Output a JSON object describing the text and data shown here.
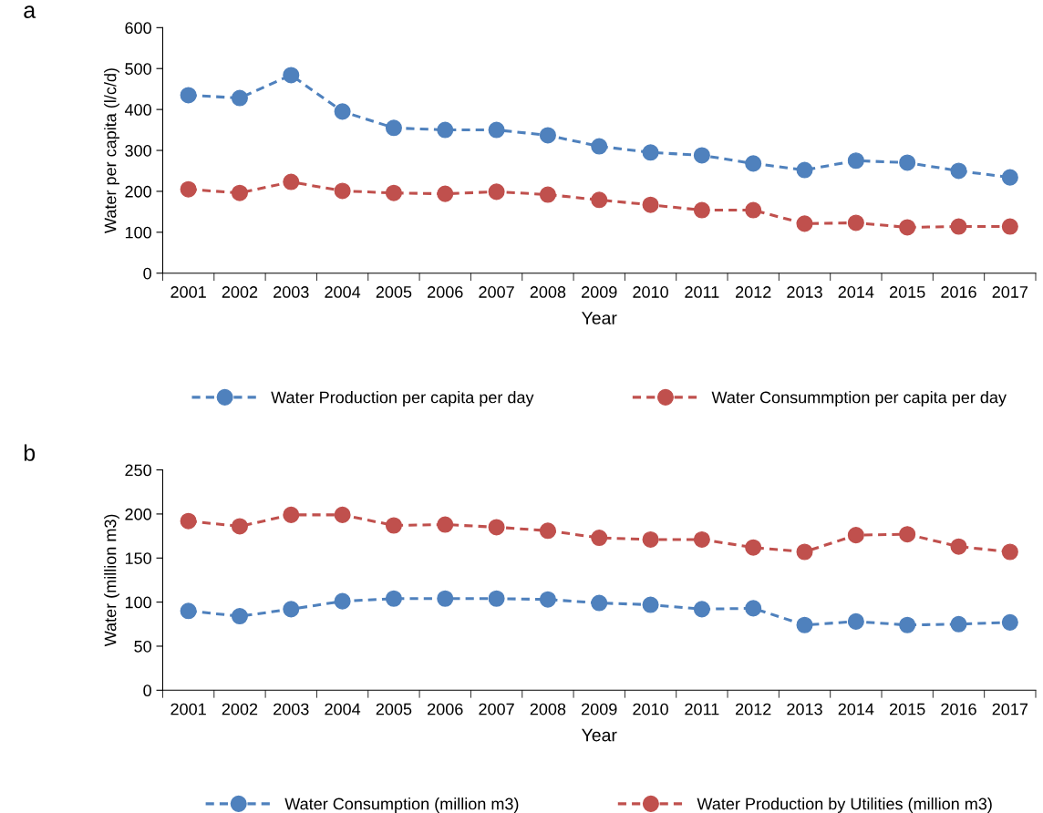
{
  "chart_data": [
    {
      "type": "line",
      "annotations": [
        "a"
      ],
      "xlabel": "Year",
      "ylabel": "Water per capita (l/c/d)",
      "categories": [
        "2001",
        "2002",
        "2003",
        "2004",
        "2005",
        "2006",
        "2007",
        "2008",
        "2009",
        "2010",
        "2011",
        "2012",
        "2013",
        "2014",
        "2015",
        "2016",
        "2017"
      ],
      "ylim": [
        0,
        600
      ],
      "yticks": [
        0,
        100,
        200,
        300,
        400,
        500,
        600
      ],
      "marker": "circle",
      "line_style": "dashed",
      "legend": "bottom",
      "grid": false,
      "series": [
        {
          "name": "Water Production per capita per day",
          "color": "#4f81bd",
          "values": [
            435,
            428,
            484,
            395,
            355,
            350,
            350,
            337,
            310,
            295,
            288,
            268,
            252,
            275,
            270,
            250,
            234
          ]
        },
        {
          "name": "Water Consummption per capita per day",
          "color": "#c0504d",
          "values": [
            205,
            196,
            223,
            201,
            196,
            194,
            199,
            192,
            179,
            167,
            154,
            154,
            121,
            123,
            112,
            114,
            114
          ]
        }
      ]
    },
    {
      "type": "line",
      "annotations": [
        "b"
      ],
      "xlabel": "Year",
      "ylabel": "Water (million m3)",
      "categories": [
        "2001",
        "2002",
        "2003",
        "2004",
        "2005",
        "2006",
        "2007",
        "2008",
        "2009",
        "2010",
        "2011",
        "2012",
        "2013",
        "2014",
        "2015",
        "2016",
        "2017"
      ],
      "ylim": [
        0,
        250
      ],
      "yticks": [
        0,
        50,
        100,
        150,
        200,
        250
      ],
      "marker": "circle",
      "line_style": "dashed",
      "legend": "bottom",
      "grid": false,
      "series": [
        {
          "name": "Water Consumption (million m3)",
          "color": "#4f81bd",
          "values": [
            90,
            84,
            92,
            101,
            104,
            104,
            104,
            103,
            99,
            97,
            92,
            93,
            74,
            78,
            74,
            75,
            77
          ]
        },
        {
          "name": "Water Production by Utilities (million m3)",
          "color": "#c0504d",
          "values": [
            192,
            186,
            199,
            199,
            187,
            188,
            185,
            181,
            173,
            171,
            171,
            162,
            157,
            176,
            177,
            163,
            157
          ]
        }
      ]
    }
  ]
}
